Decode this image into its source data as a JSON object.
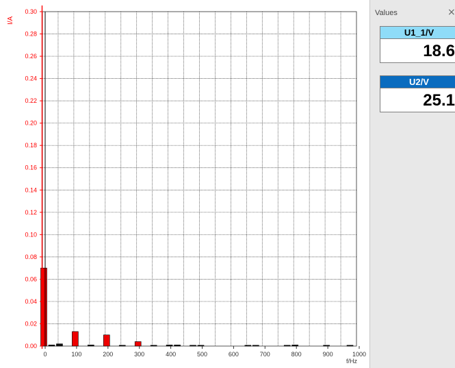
{
  "panel": {
    "title": "Values",
    "close_glyph": "×",
    "values": [
      {
        "label": "U1_1/V",
        "value": "18.6",
        "header_color": "#8fdcf8",
        "text_color": "#000000"
      },
      {
        "label": "U2/V",
        "value": "25.1",
        "header_color": "#0a6cbf",
        "text_color": "#ffffff"
      }
    ]
  },
  "colors": {
    "axis_red": "#ff0000",
    "bar_red": "#ee0000",
    "bar_black": "#111111",
    "grid": "#333333"
  },
  "chart_data": {
    "type": "bar",
    "ylabel": "I/A",
    "xlabel": "f/Hz",
    "xlim": [
      0,
      1000
    ],
    "ylim": [
      0,
      0.3
    ],
    "grid": true,
    "x_ticks": [
      0,
      100,
      200,
      300,
      400,
      500,
      600,
      700,
      800,
      900,
      1000
    ],
    "y_ticks": [
      "0.00",
      "0.02",
      "0.04",
      "0.06",
      "0.08",
      "0.10",
      "0.12",
      "0.14",
      "0.16",
      "0.18",
      "0.20",
      "0.22",
      "0.24",
      "0.26",
      "0.28",
      "0.30"
    ],
    "series": [
      {
        "color": "red",
        "x": [
          0,
          100,
          200,
          300
        ],
        "y": [
          0.07,
          0.013,
          0.01,
          0.004
        ]
      },
      {
        "color": "black",
        "x": [
          25,
          50,
          150,
          250,
          350,
          400,
          425,
          475,
          500,
          650,
          675,
          775,
          800,
          900,
          975
        ],
        "y": [
          0.001,
          0.002,
          0.001,
          0.0005,
          0.0005,
          0.001,
          0.001,
          0.0005,
          0.0005,
          0.0005,
          0.0005,
          0.0005,
          0.001,
          0.0005,
          0.0005
        ]
      }
    ]
  }
}
